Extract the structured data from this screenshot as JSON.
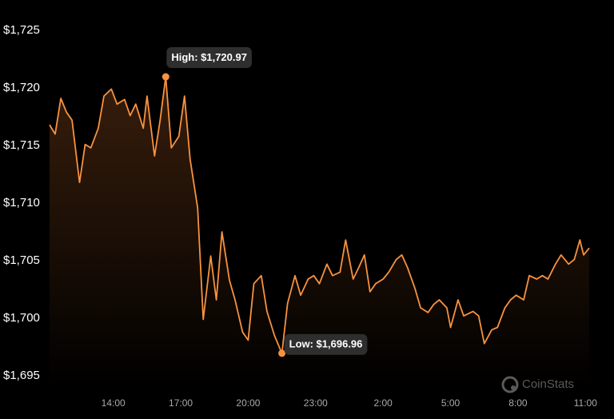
{
  "chart_data": {
    "type": "area",
    "color": "#f8923f",
    "x": [
      "11:10",
      "11:25",
      "11:40",
      "11:55",
      "12:10",
      "12:30",
      "12:45",
      "13:00",
      "13:20",
      "13:35",
      "13:55",
      "14:10",
      "14:30",
      "14:45",
      "15:00",
      "15:20",
      "15:30",
      "15:50",
      "16:05",
      "16:20",
      "16:35",
      "16:55",
      "17:10",
      "17:25",
      "17:45",
      "18:00",
      "18:20",
      "18:35",
      "18:50",
      "19:10",
      "19:25",
      "19:45",
      "20:00",
      "20:15",
      "20:35",
      "20:50",
      "21:10",
      "21:30",
      "21:45",
      "22:05",
      "22:20",
      "22:40",
      "22:55",
      "23:10",
      "23:30",
      "23:45",
      "0:05",
      "0:20",
      "0:40",
      "0:55",
      "1:10",
      "1:25",
      "1:40",
      "2:00",
      "2:15",
      "2:35",
      "2:50",
      "3:05",
      "3:25",
      "3:40",
      "4:00",
      "4:15",
      "4:30",
      "4:50",
      "5:00",
      "5:20",
      "5:35",
      "6:00",
      "6:15",
      "6:30",
      "6:50",
      "7:05",
      "7:25",
      "7:40",
      "7:55",
      "8:15",
      "8:30",
      "8:50",
      "9:05",
      "9:20",
      "9:40",
      "9:55",
      "10:15",
      "10:30",
      "10:45",
      "10:55",
      "11:10"
    ],
    "values": [
      1716.8,
      1716.0,
      1719.1,
      1717.9,
      1717.2,
      1711.8,
      1715.1,
      1714.8,
      1716.5,
      1719.3,
      1719.9,
      1718.6,
      1719.0,
      1717.6,
      1718.6,
      1716.5,
      1719.3,
      1714.1,
      1717.2,
      1720.97,
      1714.8,
      1715.8,
      1719.3,
      1713.8,
      1709.6,
      1699.9,
      1705.4,
      1701.6,
      1707.5,
      1703.3,
      1701.6,
      1698.8,
      1698.1,
      1703.0,
      1703.7,
      1700.6,
      1698.5,
      1696.96,
      1701.3,
      1703.7,
      1702.0,
      1703.4,
      1703.7,
      1703.0,
      1704.7,
      1703.7,
      1704.0,
      1706.8,
      1703.4,
      1704.4,
      1705.5,
      1702.3,
      1703.0,
      1703.4,
      1704.0,
      1705.1,
      1705.5,
      1704.4,
      1702.6,
      1700.9,
      1700.5,
      1701.2,
      1701.6,
      1700.9,
      1699.2,
      1701.6,
      1700.2,
      1700.6,
      1700.2,
      1697.8,
      1699.0,
      1699.2,
      1700.9,
      1701.6,
      1702.0,
      1701.6,
      1703.7,
      1703.4,
      1703.7,
      1703.4,
      1704.7,
      1705.5,
      1704.7,
      1705.1,
      1706.8,
      1705.5,
      1706.1
    ],
    "ylim": [
      1695,
      1725
    ],
    "yticks": [
      {
        "value": 1695,
        "label": "$1,695"
      },
      {
        "value": 1700,
        "label": "$1,700"
      },
      {
        "value": 1705,
        "label": "$1,705"
      },
      {
        "value": 1710,
        "label": "$1,710"
      },
      {
        "value": 1715,
        "label": "$1,715"
      },
      {
        "value": 1720,
        "label": "$1,720"
      },
      {
        "value": 1725,
        "label": "$1,725"
      }
    ],
    "xticks": [
      "14:00",
      "17:00",
      "20:00",
      "23:00",
      "2:00",
      "5:00",
      "8:00",
      "11:00"
    ],
    "annotations": {
      "high": "High: $1,720.97",
      "low": "Low: $1,696.96"
    },
    "watermark": "CoinStats"
  }
}
